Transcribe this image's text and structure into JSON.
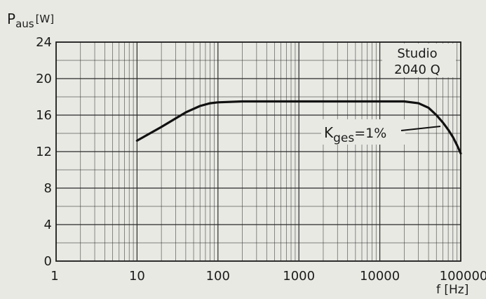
{
  "chart_data": {
    "type": "line",
    "title": "Studio",
    "subtitle": "2040 Q",
    "ylabel_main": "P",
    "ylabel_sub": "aus",
    "ylabel_unit": "[W]",
    "xlabel": "f [Hz]",
    "x_scale": "log",
    "xlim": [
      1,
      100000
    ],
    "ylim": [
      0,
      24
    ],
    "grid": true,
    "x_ticks": [
      1,
      10,
      100,
      1000,
      10000,
      100000
    ],
    "x_tick_labels": [
      "1",
      "10",
      "100",
      "1000",
      "10000",
      "100000"
    ],
    "y_ticks": [
      0,
      4,
      8,
      12,
      16,
      20,
      24
    ],
    "y_tick_labels": [
      "0",
      "4",
      "8",
      "12",
      "16",
      "20",
      "24"
    ],
    "annotation": {
      "main": "K",
      "sub": "ges",
      "rest": "=1%"
    },
    "series": [
      {
        "x": [
          10,
          20,
          40,
          60,
          80,
          100,
          200,
          1000,
          10000,
          20000,
          30000,
          40000,
          50000,
          60000,
          70000,
          80000,
          90000,
          100000
        ],
        "y": [
          13.2,
          14.7,
          16.3,
          17.0,
          17.3,
          17.4,
          17.5,
          17.5,
          17.5,
          17.5,
          17.3,
          16.8,
          16.0,
          15.2,
          14.4,
          13.6,
          12.7,
          11.8
        ]
      }
    ]
  }
}
